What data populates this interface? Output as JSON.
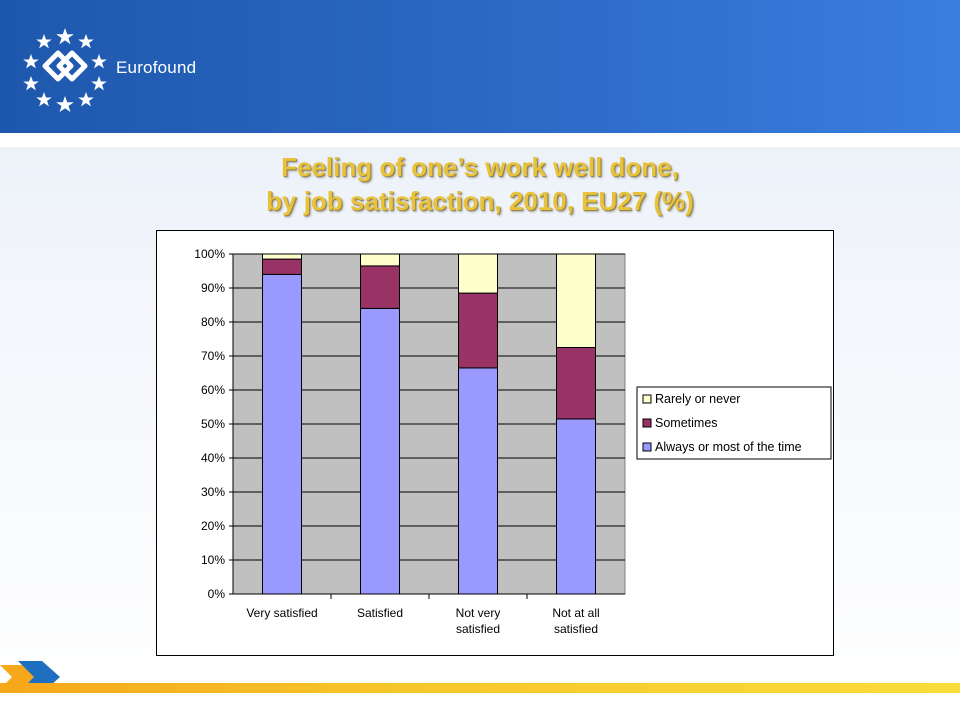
{
  "header": {
    "brand_name": "Eurofound",
    "colors": {
      "band_start": "#1e58ad",
      "band_end": "#3a7ee0",
      "title": "#e8c23a"
    }
  },
  "slide": {
    "title_line1": "Feeling of one’s work well done,",
    "title_line2": "by job satisfaction, 2010, EU27 (%)"
  },
  "chart_data": {
    "type": "bar",
    "stacked": true,
    "percent": true,
    "categories": [
      [
        "Very satisfied"
      ],
      [
        "Satisfied"
      ],
      [
        "Not very",
        "satisfied"
      ],
      [
        "Not at all",
        "satisfied"
      ]
    ],
    "series": [
      {
        "name": "Always or most of the time",
        "values": [
          94,
          84,
          66.5,
          51.5
        ],
        "color": "#9999ff"
      },
      {
        "name": "Sometimes",
        "values": [
          4.5,
          12.5,
          22,
          21
        ],
        "color": "#993366"
      },
      {
        "name": "Rarely or never",
        "values": [
          1.5,
          3.5,
          11.5,
          27.5
        ],
        "color": "#ffffcc"
      }
    ],
    "y_ticks": [
      "0%",
      "10%",
      "20%",
      "30%",
      "40%",
      "50%",
      "60%",
      "70%",
      "80%",
      "90%",
      "100%"
    ],
    "ylim": [
      0,
      100
    ],
    "grid": true,
    "plot_background": "#c0c0c0",
    "legend_position": "right",
    "legend_order": [
      "Rarely or never",
      "Sometimes",
      "Always or most of the time"
    ]
  }
}
